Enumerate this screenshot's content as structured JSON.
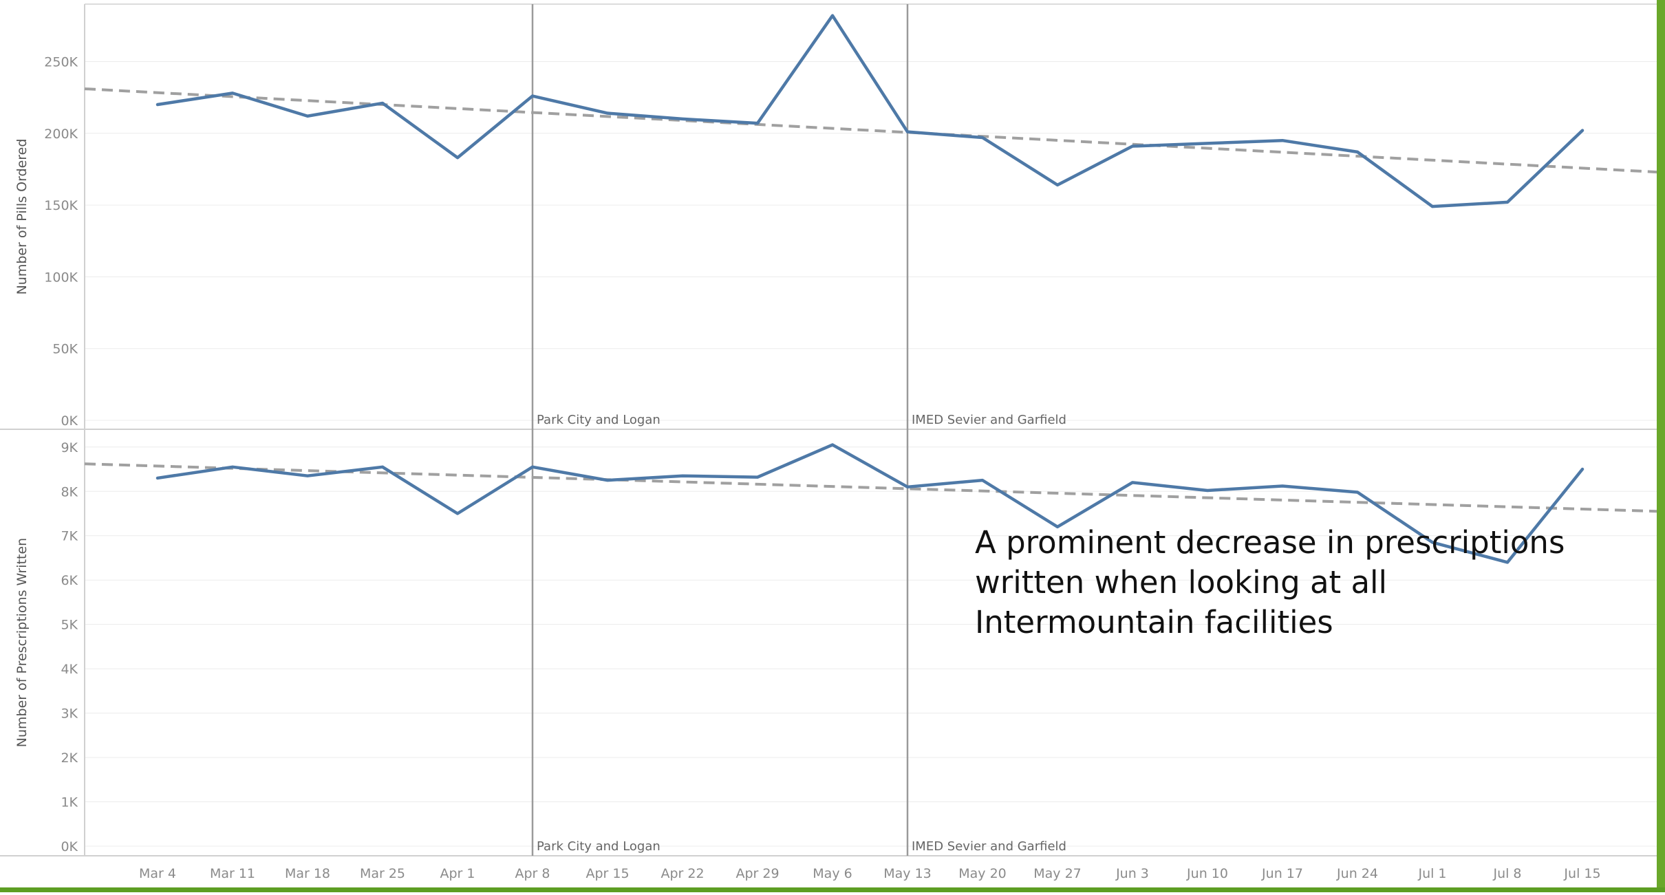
{
  "annotation_text": "A prominent decrease in prescriptions written when looking at all Intermountain facilities",
  "colors": {
    "series": "#4e79a7",
    "trend": "#a0a0a0",
    "reference": "#9a9a9a",
    "frame": "#d0d0d0",
    "grid": "#ececec"
  },
  "chart_data": [
    {
      "type": "line",
      "ylabel": "Number of Pills Ordered",
      "ylim": [
        0,
        290000
      ],
      "yticks": [
        0,
        50000,
        100000,
        150000,
        200000,
        250000
      ],
      "ytick_labels": [
        "0K",
        "50K",
        "100K",
        "150K",
        "200K",
        "250K"
      ],
      "x": [
        "Mar 4",
        "Mar 11",
        "Mar 18",
        "Mar 25",
        "Apr 1",
        "Apr 8",
        "Apr 15",
        "Apr 22",
        "Apr 29",
        "May 6",
        "May 13",
        "May 20",
        "May 27",
        "Jun 3",
        "Jun 10",
        "Jun 17",
        "Jun 24",
        "Jul 1",
        "Jul 8",
        "Jul 15"
      ],
      "series": [
        {
          "values": [
            220000,
            228000,
            212000,
            221000,
            183000,
            226000,
            214000,
            210000,
            207000,
            282000,
            201000,
            197000,
            164000,
            191000,
            193000,
            195000,
            187000,
            149000,
            152000,
            202000
          ]
        }
      ],
      "trend_line": {
        "style": "dashed",
        "start": 231000,
        "end": 173000
      },
      "reference_lines": [
        {
          "at": "Apr 8",
          "label": "Park City and Logan"
        },
        {
          "at": "May 13",
          "label": "IMED Sevier and Garfield"
        }
      ]
    },
    {
      "type": "line",
      "ylabel": "Number of Prescriptions Written",
      "ylim": [
        0,
        9400
      ],
      "yticks": [
        0,
        1000,
        2000,
        3000,
        4000,
        5000,
        6000,
        7000,
        8000,
        9000
      ],
      "ytick_labels": [
        "0K",
        "1K",
        "2K",
        "3K",
        "4K",
        "5K",
        "6K",
        "7K",
        "8K",
        "9K"
      ],
      "x": [
        "Mar 4",
        "Mar 11",
        "Mar 18",
        "Mar 25",
        "Apr 1",
        "Apr 8",
        "Apr 15",
        "Apr 22",
        "Apr 29",
        "May 6",
        "May 13",
        "May 20",
        "May 27",
        "Jun 3",
        "Jun 10",
        "Jun 17",
        "Jun 24",
        "Jul 1",
        "Jul 8",
        "Jul 15"
      ],
      "series": [
        {
          "values": [
            8300,
            8550,
            8350,
            8550,
            7500,
            8550,
            8250,
            8350,
            8320,
            9050,
            8100,
            8250,
            7200,
            8200,
            8020,
            8120,
            7980,
            6850,
            6400,
            8500
          ]
        }
      ],
      "trend_line": {
        "style": "dashed",
        "start": 8620,
        "end": 7550
      },
      "reference_lines": [
        {
          "at": "Apr 8",
          "label": "Park City and Logan"
        },
        {
          "at": "May 13",
          "label": "IMED Sevier and Garfield"
        }
      ]
    }
  ],
  "x_axis_labels": [
    "Mar 4",
    "Mar 11",
    "Mar 18",
    "Mar 25",
    "Apr 1",
    "Apr 8",
    "Apr 15",
    "Apr 22",
    "Apr 29",
    "May 6",
    "May 13",
    "May 20",
    "May 27",
    "Jun 3",
    "Jun 10",
    "Jun 17",
    "Jun 24",
    "Jul 1",
    "Jul 8",
    "Jul 15"
  ]
}
